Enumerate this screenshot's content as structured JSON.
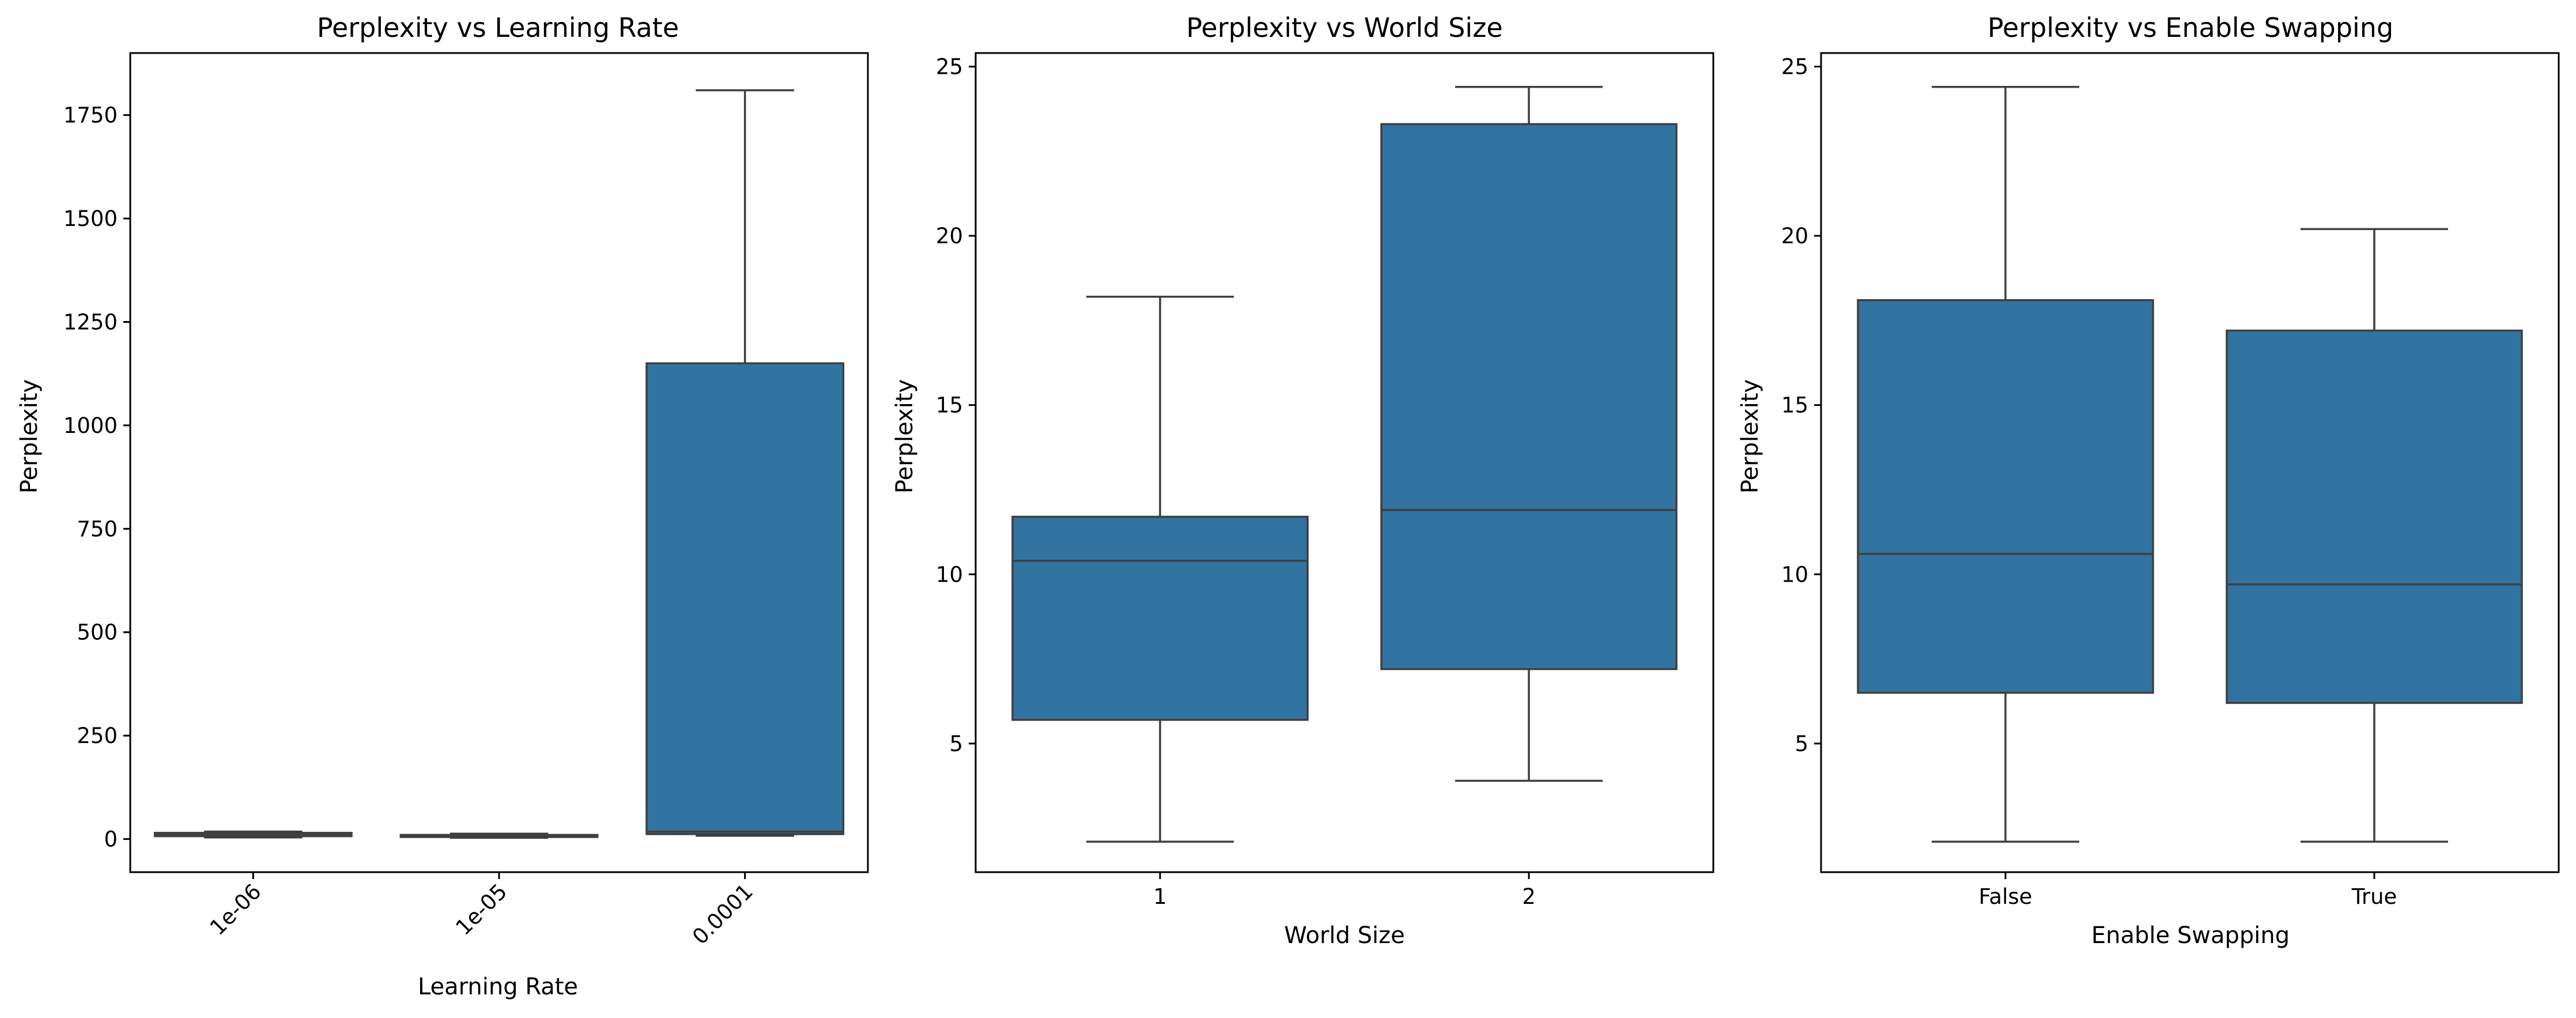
{
  "chart_data": [
    {
      "type": "box",
      "title": "Perplexity vs Learning Rate",
      "xlabel": "Learning Rate",
      "ylabel": "Perplexity",
      "ylim": [
        -80,
        1900
      ],
      "yticks": [
        0,
        250,
        500,
        750,
        1000,
        1250,
        1500,
        1750
      ],
      "xtick_rotation": 45,
      "color": "#3274a1",
      "categories": [
        "1e-06",
        "1e-05",
        "0.0001"
      ],
      "boxes": [
        {
          "category": "1e-06",
          "whislo": 4,
          "q1": 7,
          "med": 10,
          "q3": 15,
          "whishi": 18
        },
        {
          "category": "1e-05",
          "whislo": 3,
          "q1": 5,
          "med": 7,
          "q3": 10,
          "whishi": 13
        },
        {
          "category": "0.0001",
          "whislo": 8,
          "q1": 12,
          "med": 18,
          "q3": 1150,
          "whishi": 1810
        }
      ]
    },
    {
      "type": "box",
      "title": "Perplexity vs World Size",
      "xlabel": "World Size",
      "ylabel": "Perplexity",
      "ylim": [
        1.2,
        25.4
      ],
      "yticks": [
        5,
        10,
        15,
        20,
        25
      ],
      "xtick_rotation": 0,
      "color": "#3274a1",
      "categories": [
        "1",
        "2"
      ],
      "boxes": [
        {
          "category": "1",
          "whislo": 2.1,
          "q1": 5.7,
          "med": 10.4,
          "q3": 11.7,
          "whishi": 18.2
        },
        {
          "category": "2",
          "whislo": 3.9,
          "q1": 7.2,
          "med": 11.9,
          "q3": 23.3,
          "whishi": 24.4
        }
      ]
    },
    {
      "type": "box",
      "title": "Perplexity vs Enable Swapping",
      "xlabel": "Enable Swapping",
      "ylabel": "Perplexity",
      "ylim": [
        1.2,
        25.4
      ],
      "yticks": [
        5,
        10,
        15,
        20,
        25
      ],
      "xtick_rotation": 0,
      "color": "#3274a1",
      "categories": [
        "False",
        "True"
      ],
      "boxes": [
        {
          "category": "False",
          "whislo": 2.1,
          "q1": 6.5,
          "med": 10.6,
          "q3": 18.1,
          "whishi": 24.4
        },
        {
          "category": "True",
          "whislo": 2.1,
          "q1": 6.2,
          "med": 9.7,
          "q3": 17.2,
          "whishi": 20.2
        }
      ]
    }
  ]
}
